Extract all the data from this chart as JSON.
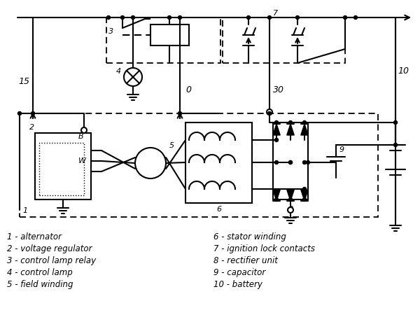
{
  "bg_color": "#ffffff",
  "legend_col1": [
    "1 - alternator",
    "2 - voltage regulator",
    "3 - control lamp relay",
    "4 - control lamp",
    "5 - field winding"
  ],
  "legend_col2": [
    "6 - stator winding",
    "7 - ignition lock contacts",
    "8 - rectifier unit",
    "9 - capacitor",
    "10 - battery"
  ]
}
